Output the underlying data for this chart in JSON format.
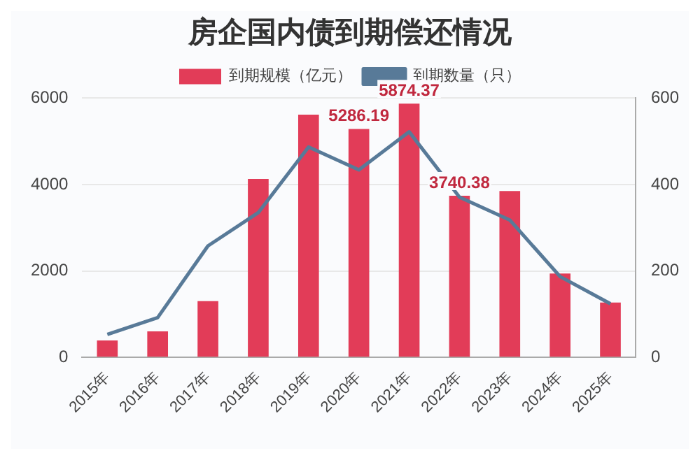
{
  "chart_data": {
    "type": "bar",
    "title": "房企国内债到期偿还情况",
    "categories": [
      "2015年",
      "2016年",
      "2017年",
      "2018年",
      "2019年",
      "2020年",
      "2021年",
      "2022年",
      "2023年",
      "2024年",
      "2025年"
    ],
    "series": [
      {
        "name": "到期规模（亿元）",
        "color": "#e23c58",
        "values": [
          390,
          600,
          1300,
          4130,
          5620,
          5286.19,
          5874.37,
          3740.38,
          3850,
          1940,
          1270
        ],
        "value_labels": [
          null,
          null,
          null,
          null,
          null,
          "5286.19",
          "5874.37",
          "3740.38",
          null,
          null,
          null
        ]
      },
      {
        "name": "到期数量（只）",
        "type": "line",
        "axis": "y2",
        "color": "#587a98",
        "values": [
          53,
          92,
          258,
          335,
          487,
          434,
          522,
          371,
          318,
          187,
          124
        ]
      }
    ],
    "ylim": [
      0,
      6000
    ],
    "yticks": [
      0,
      2000,
      4000,
      6000
    ],
    "y2lim": [
      0,
      600
    ],
    "y2ticks": [
      0,
      200,
      400,
      600
    ],
    "grid": "y",
    "legend": "top",
    "marker": "none",
    "line_style": "solid"
  }
}
